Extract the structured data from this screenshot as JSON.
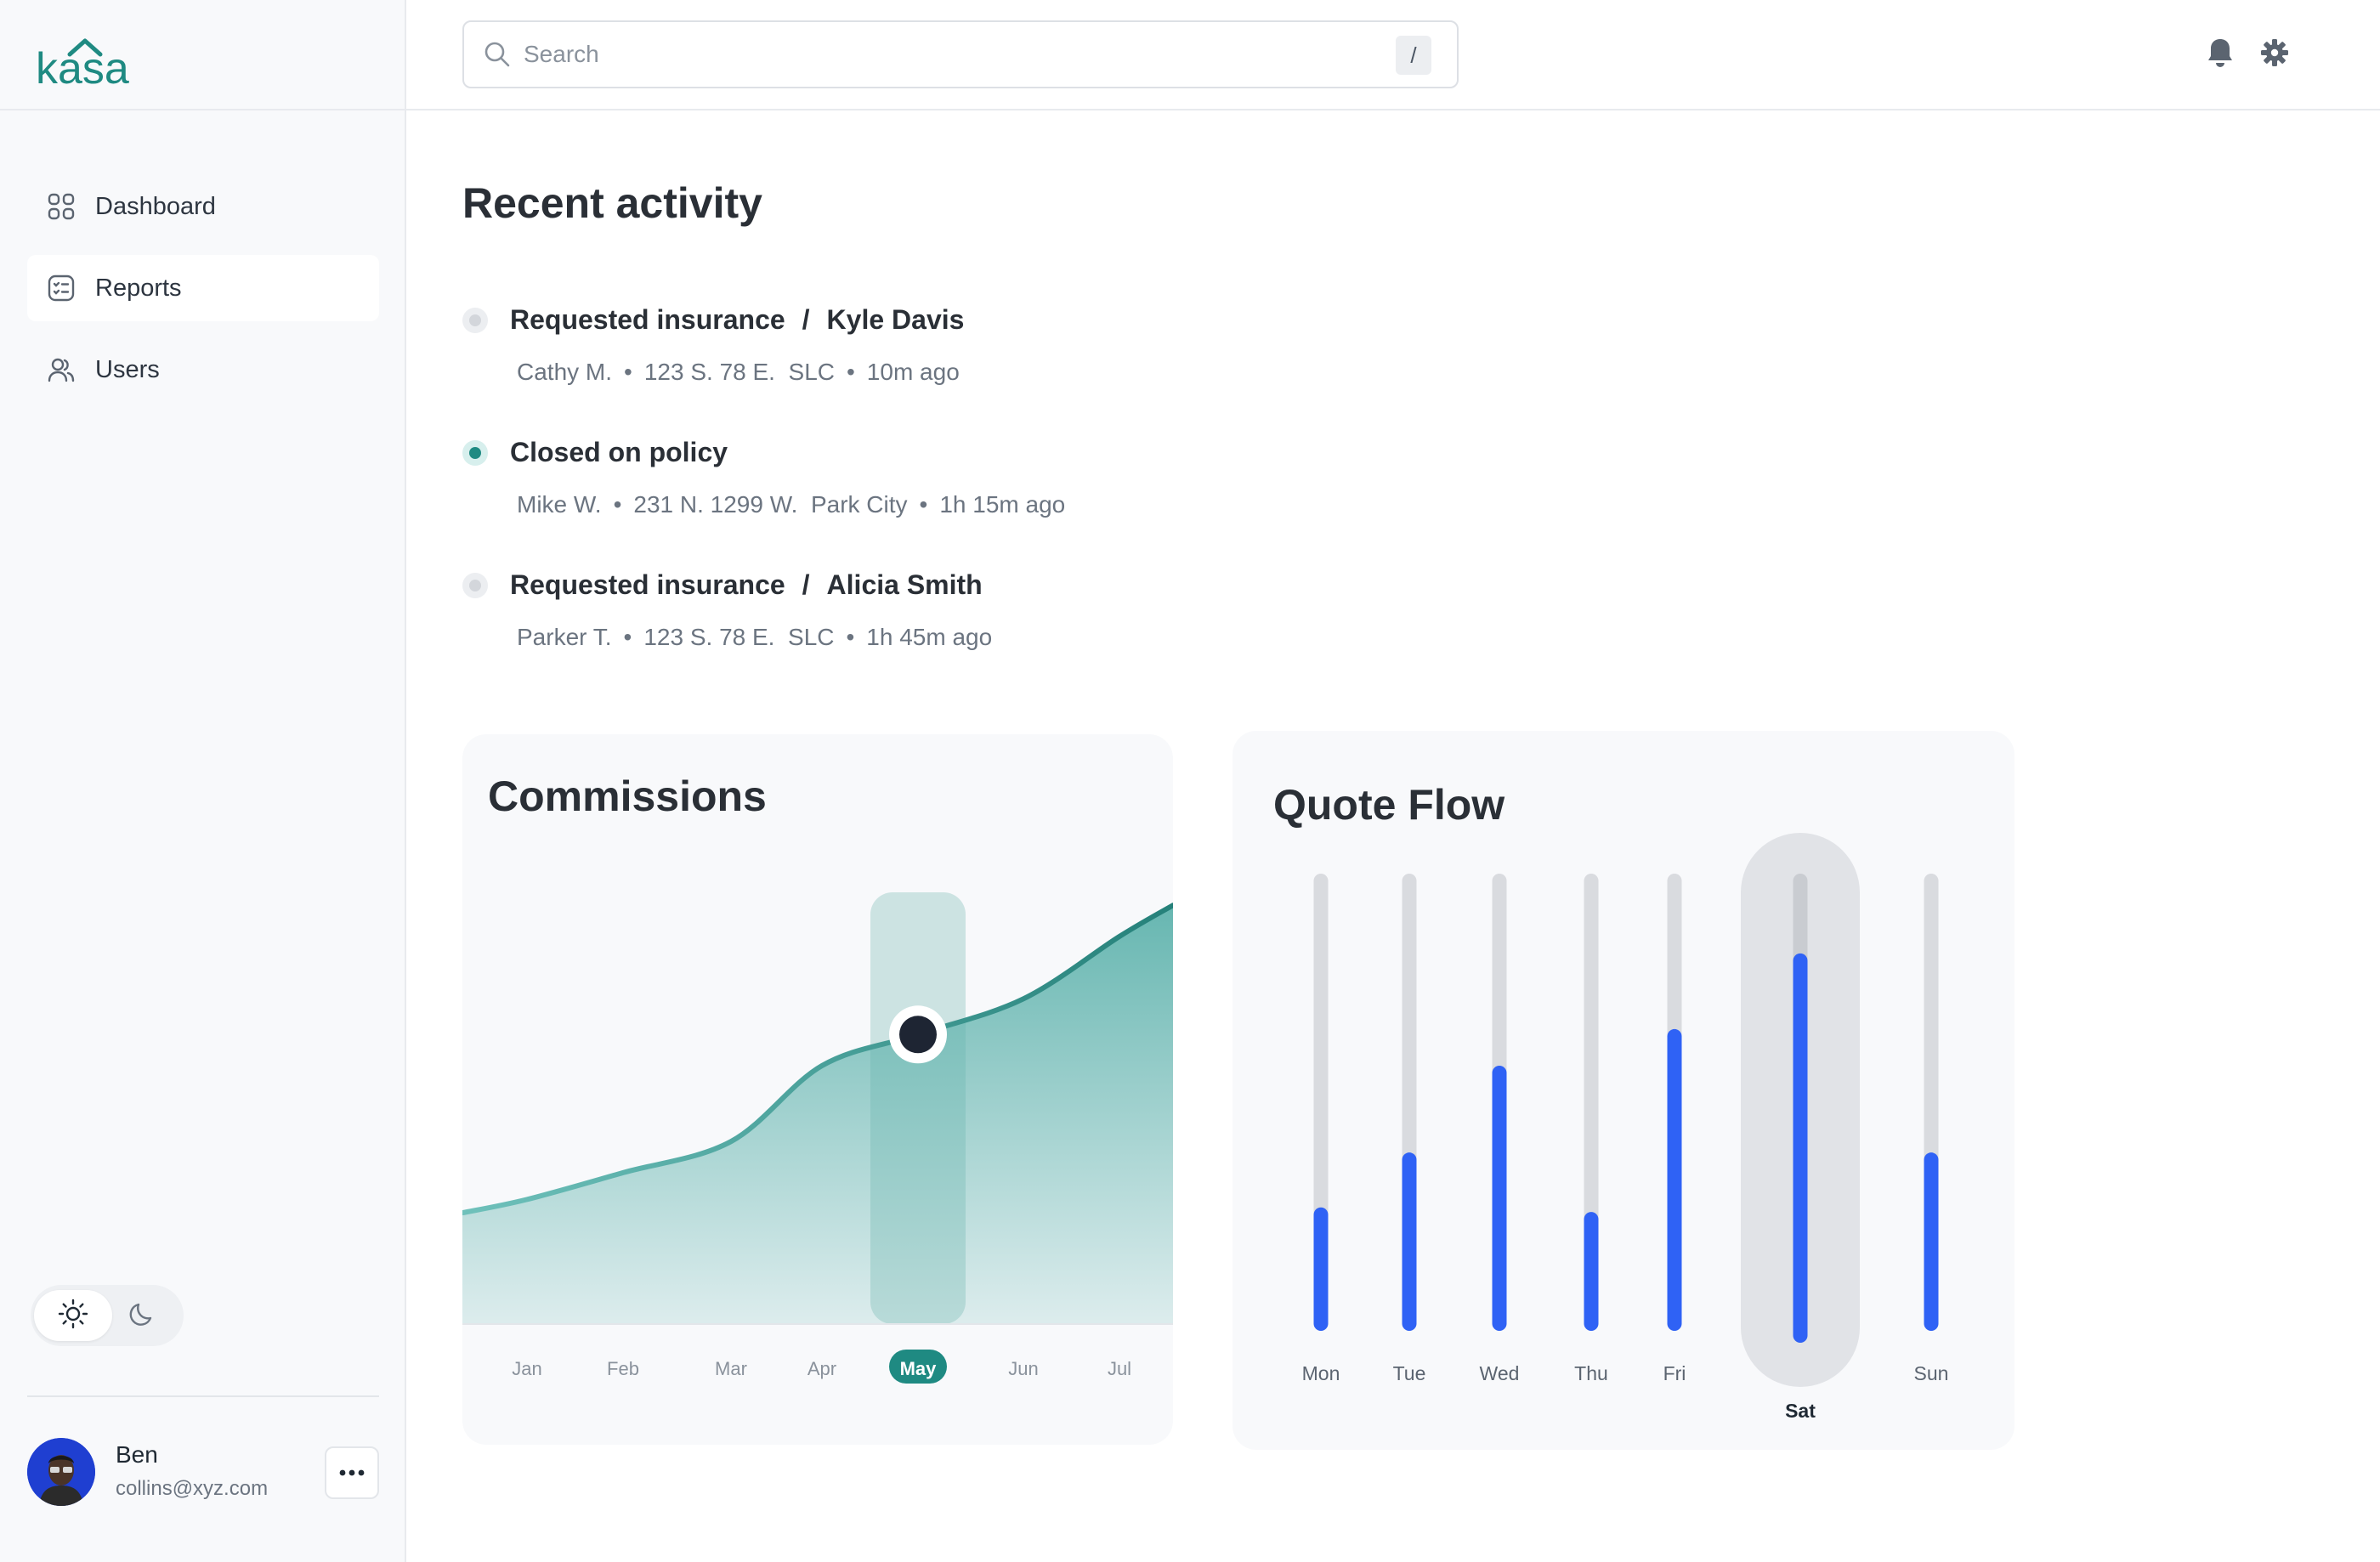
{
  "app": {
    "logo_text": "kasa"
  },
  "search": {
    "placeholder": "Search",
    "shortcut": "/"
  },
  "header_icons": [
    "bell-icon",
    "gear-icon"
  ],
  "sidebar": {
    "items": [
      {
        "label": "Dashboard",
        "icon": "grid-icon",
        "active": false
      },
      {
        "label": "Reports",
        "icon": "report-icon",
        "active": true
      },
      {
        "label": "Users",
        "icon": "users-icon",
        "active": false
      }
    ],
    "theme": {
      "selected": "light",
      "options": [
        "sun-icon",
        "moon-icon"
      ]
    },
    "profile": {
      "name": "Ben",
      "email": "collins@xyz.com"
    }
  },
  "activity": {
    "title": "Recent activity",
    "items": [
      {
        "status": "pending",
        "action": "Requested insurance",
        "separator": "/",
        "person": "Kyle Davis",
        "agent": "Cathy M.",
        "address": "123 S. 78 E.  SLC",
        "time": "10m ago"
      },
      {
        "status": "done",
        "action": "Closed on policy",
        "separator": "",
        "person": "",
        "agent": "Mike W.",
        "address": "231 N. 1299 W.  Park City",
        "time": "1h 15m ago"
      },
      {
        "status": "pending",
        "action": "Requested insurance",
        "separator": "/",
        "person": "Alicia Smith",
        "agent": "Parker T.",
        "address": "123 S. 78 E.  SLC",
        "time": "1h 45m ago"
      }
    ]
  },
  "chart_data": [
    {
      "type": "area",
      "title": "Commissions",
      "categories": [
        "Jan",
        "Feb",
        "Mar",
        "Apr",
        "May",
        "Jun",
        "Jul"
      ],
      "values": [
        0.27,
        0.33,
        0.4,
        0.57,
        0.64,
        0.72,
        0.86
      ],
      "highlight": "May",
      "colors": {
        "line": "#2a8a82",
        "fill": "#5fb3ad",
        "highlight": "#1f8a82",
        "marker": "#1e2533"
      }
    },
    {
      "type": "bar",
      "title": "Quote Flow",
      "categories": [
        "Mon",
        "Tue",
        "Wed",
        "Thu",
        "Fri",
        "Sat",
        "Sun"
      ],
      "values": [
        0.27,
        0.39,
        0.58,
        0.26,
        0.66,
        0.83,
        0.39
      ],
      "highlight": "Sat",
      "colors": {
        "bar": "#2f62f5",
        "track": "#d9dbdf",
        "highlight_bg": "#e1e3e7"
      }
    }
  ]
}
